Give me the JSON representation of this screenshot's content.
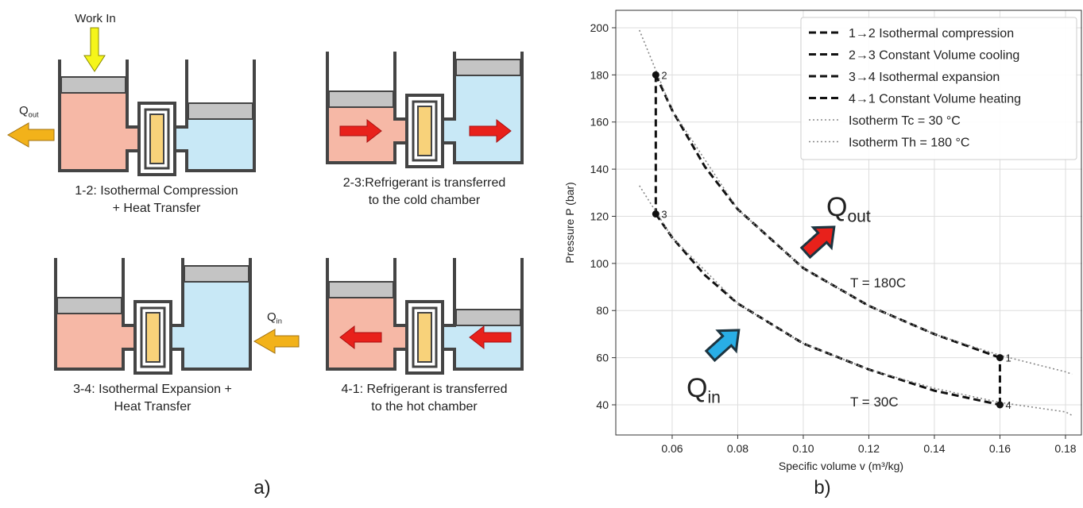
{
  "diagram": {
    "work_in": "Work In",
    "q_out": {
      "main": "Q",
      "sub": "out"
    },
    "q_in": {
      "main": "Q",
      "sub": "in"
    },
    "steps": [
      {
        "line1": "1-2: Isothermal Compression",
        "line2": "+ Heat Transfer"
      },
      {
        "line1": "2-3:Refrigerant is transferred",
        "line2": "to the cold chamber"
      },
      {
        "line1": "3-4: Isothermal Expansion +",
        "line2": "Heat Transfer"
      },
      {
        "line1": "4-1: Refrigerant is transferred",
        "line2": "to the hot chamber"
      }
    ],
    "panel_label": "a)"
  },
  "chart_data": {
    "type": "line",
    "panel_label": "b)",
    "x_label": "Specific volume v (m³/kg)",
    "y_label": "Pressure P (bar)",
    "xlim": [
      0.0428,
      0.1851
    ],
    "ylim": [
      27.2,
      207.4
    ],
    "xticks": [
      0.06,
      0.08,
      {
        "value": 0.1,
        "label": "0.10"
      },
      0.12,
      0.14,
      0.16,
      0.18
    ],
    "yticks": [
      40,
      60,
      80,
      100,
      120,
      140,
      160,
      180,
      200
    ],
    "grid": true,
    "legend": "upper right",
    "series": [
      {
        "name": "1→2 Isothermal compression",
        "color": "#111111",
        "style": "dashed",
        "x": [
          0.16,
          0.14,
          0.12,
          0.1,
          0.08,
          0.07,
          0.06,
          0.055
        ],
        "values": [
          60,
          70,
          82,
          98,
          123,
          141,
          165,
          180
        ]
      },
      {
        "name": "2→3 Constant Volume cooling",
        "color": "#111111",
        "style": "dashed",
        "x": [
          0.055,
          0.055
        ],
        "values": [
          180,
          121
        ]
      },
      {
        "name": "3→4 Isothermal expansion",
        "color": "#111111",
        "style": "dashed",
        "x": [
          0.055,
          0.06,
          0.07,
          0.08,
          0.1,
          0.12,
          0.14,
          0.16
        ],
        "values": [
          121,
          111,
          95,
          83,
          66,
          55,
          46,
          40
        ]
      },
      {
        "name": "4→1 Constant Volume heating",
        "color": "#111111",
        "style": "dashed",
        "x": [
          0.16,
          0.16
        ],
        "values": [
          40,
          60
        ]
      },
      {
        "name": "Isotherm Tc = 30 °C",
        "color": "#888888",
        "style": "dotted",
        "x": [
          0.05,
          0.06,
          0.08,
          0.1,
          0.12,
          0.14,
          0.16,
          0.18,
          0.182
        ],
        "values": [
          133,
          111,
          83,
          66,
          55,
          47,
          41,
          37,
          35.5
        ]
      },
      {
        "name": "Isotherm Th = 180 °C",
        "color": "#888888",
        "style": "dotted",
        "x": [
          0.05,
          0.06,
          0.08,
          0.1,
          0.12,
          0.14,
          0.16,
          0.18,
          0.182
        ],
        "values": [
          199,
          165,
          123,
          98,
          82,
          70,
          61,
          54,
          53
        ]
      }
    ],
    "points": [
      {
        "label": "1",
        "x": 0.16,
        "y": 60
      },
      {
        "label": "2",
        "x": 0.055,
        "y": 180
      },
      {
        "label": "3",
        "x": 0.055,
        "y": 121
      },
      {
        "label": "4",
        "x": 0.16,
        "y": 40
      }
    ],
    "annotations": [
      "T = 180C",
      "T = 30C"
    ],
    "q_out": {
      "main": "Q",
      "sub": "out"
    },
    "q_in": {
      "main": "Q",
      "sub": "in"
    }
  }
}
